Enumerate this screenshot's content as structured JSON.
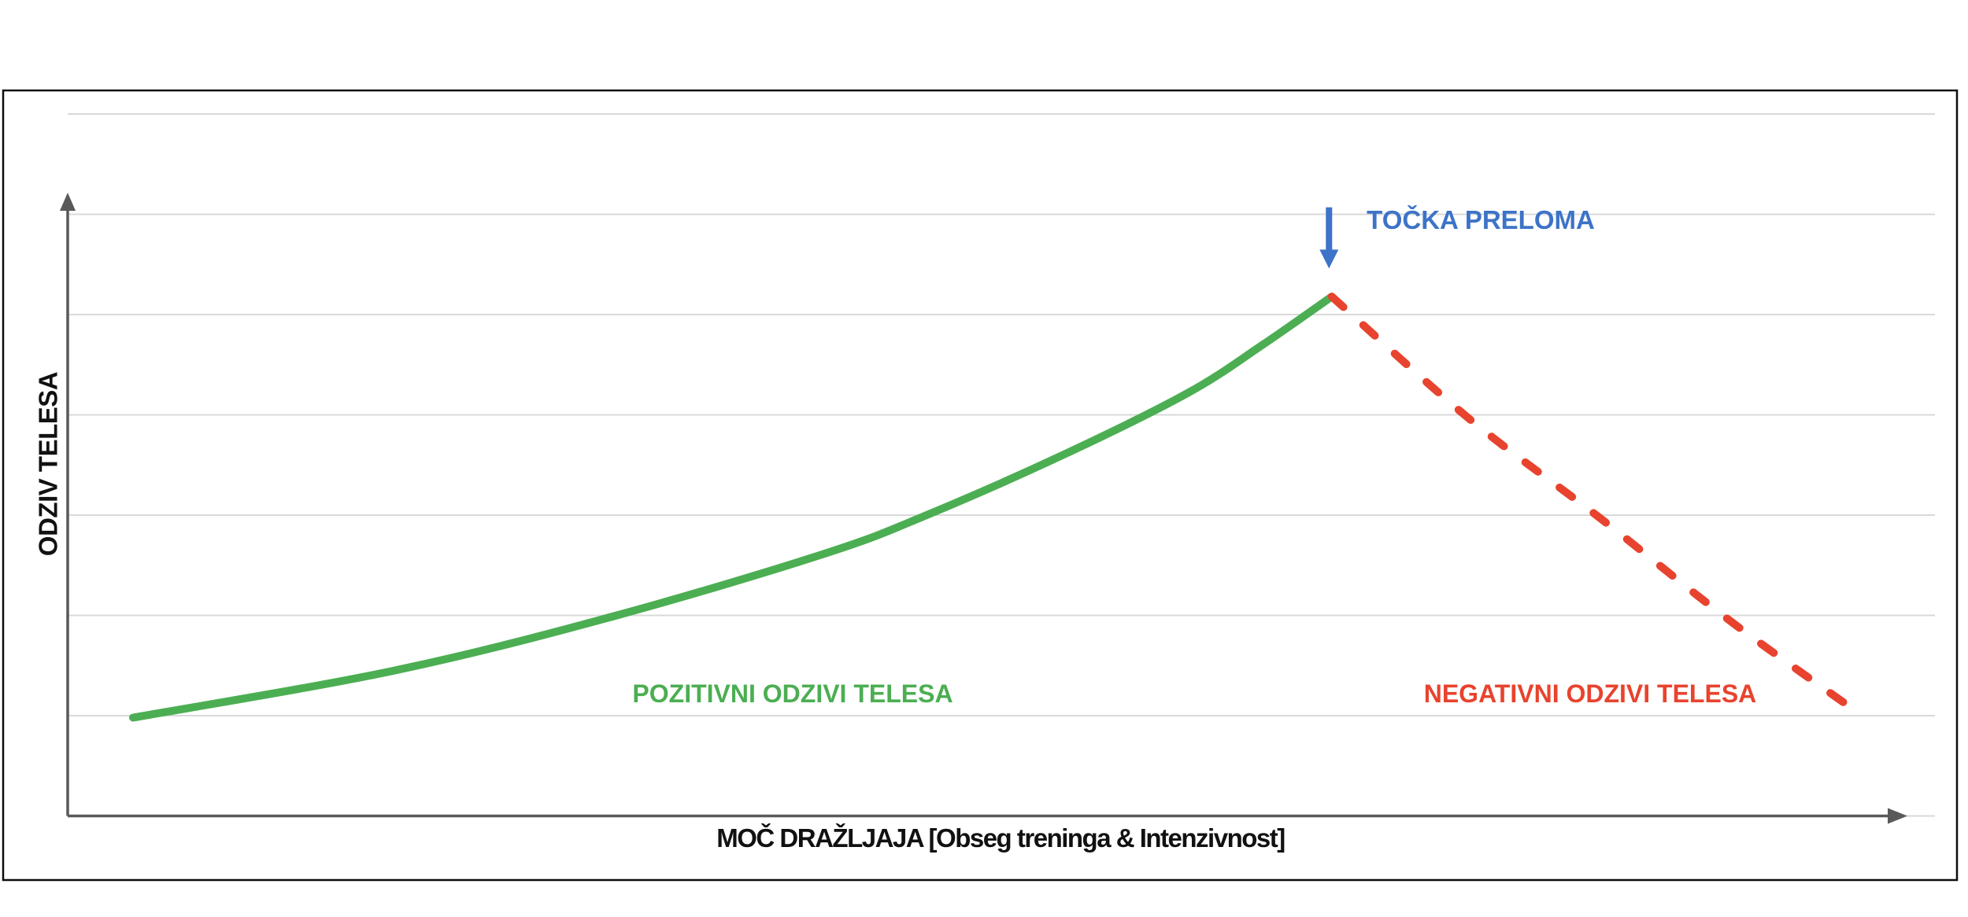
{
  "chart_data": {
    "type": "line",
    "title": "",
    "xlabel": "MOČ DRAŽLJAJA [Obseg treninga & Intenzivnost]",
    "ylabel": "ODZIV TELESA",
    "annotations": {
      "breakpoint_label": "TOČKA PRELOMA",
      "positive_label": "POZITIVNI ODZIVI TELESA",
      "negative_label": "NEGATIVNI ODZIVI TELESA"
    },
    "colors": {
      "positive": "#4CAE52",
      "negative": "#E8432E",
      "breakpoint": "#3D73C8",
      "axis": "#595959",
      "grid": "#D9D9D9",
      "frame": "#0D0D0D",
      "text": "#111111"
    },
    "xlim": [
      0,
      100
    ],
    "ylim": [
      0,
      7.2
    ],
    "grid": {
      "horizontal_lines": 8,
      "vertical_lines": 0,
      "spacing_units": 1
    },
    "axes": {
      "x_arrow": true,
      "y_arrow": true,
      "tick_labels": "none"
    },
    "series": [
      {
        "name": "POZITIVNI ODZIVI TELESA",
        "style": "solid",
        "color_key": "positive",
        "points": [
          [
            3.5,
            0.98
          ],
          [
            17.5,
            1.45
          ],
          [
            29.4,
            2.0
          ],
          [
            40.6,
            2.62
          ],
          [
            46.0,
            3.0
          ],
          [
            53.3,
            3.6
          ],
          [
            60.0,
            4.22
          ],
          [
            64.0,
            4.7
          ],
          [
            67.7,
            5.18
          ]
        ]
      },
      {
        "name": "NEGATIVNI ODZIVI TELESA",
        "style": "dashed",
        "color_key": "negative",
        "points": [
          [
            67.7,
            5.18
          ],
          [
            75.0,
            3.97
          ],
          [
            82.0,
            2.98
          ],
          [
            89.0,
            1.95
          ],
          [
            95.5,
            1.08
          ]
        ]
      }
    ],
    "breakpoint_arrow": {
      "x": 67.55,
      "y_tail": 6.07,
      "y_tip": 5.46
    }
  }
}
